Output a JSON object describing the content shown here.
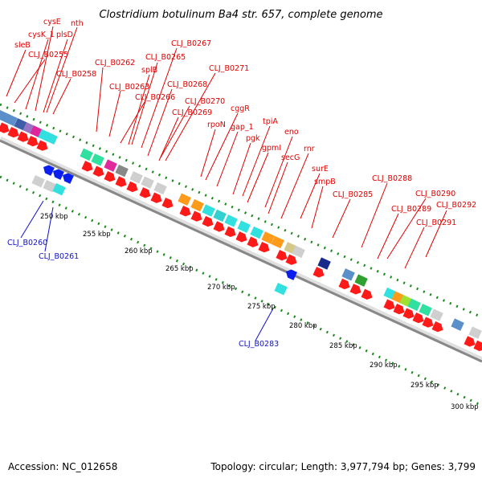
{
  "title": "Clostridium botulinum Ba4 str. 657, complete genome",
  "footer": {
    "accession": "Accession: NC_012658",
    "summary": "Topology: circular; Length: 3,977,794 bp; Genes: 3,799"
  },
  "colors": {
    "forward_label": "#e00000",
    "reverse_label": "#1010c8",
    "arrow_red": "#ff0000",
    "arrow_blue": "#0a1ef0",
    "tick_green": "#1a8a1a",
    "backbone": "#999999"
  },
  "scale_labels": [
    "250 kbp",
    "255 kbp",
    "260 kbp",
    "265 kbp",
    "270 kbp",
    "275 kbp",
    "280 kbp",
    "285 kbp",
    "290 kbp",
    "295 kbp",
    "300 kbp"
  ],
  "forward_gene_labels": [
    "nth",
    "cysE",
    "plsD",
    "cysK_1",
    "sleB",
    "CLJ_B0255",
    "CLJ_B0258",
    "CLJ_B0262",
    "CLJ_B0267",
    "CLJ_B0265",
    "splB",
    "CLJ_B0263",
    "CLJ_B0268",
    "CLJ_B0266",
    "CLJ_B0271",
    "CLJ_B0270",
    "CLJ_B0269",
    "cggR",
    "rpoN",
    "gap_1",
    "tpiA",
    "pgk",
    "gpmI",
    "eno",
    "secG",
    "rnr",
    "surE",
    "smpB",
    "CLJ_B0285",
    "CLJ_B0288",
    "CLJ_B0290",
    "CLJ_B0289",
    "CLJ_B0292",
    "CLJ_B0291"
  ],
  "reverse_gene_labels": [
    "CLJ_B0260",
    "CLJ_B0261",
    "CLJ_B0283"
  ]
}
